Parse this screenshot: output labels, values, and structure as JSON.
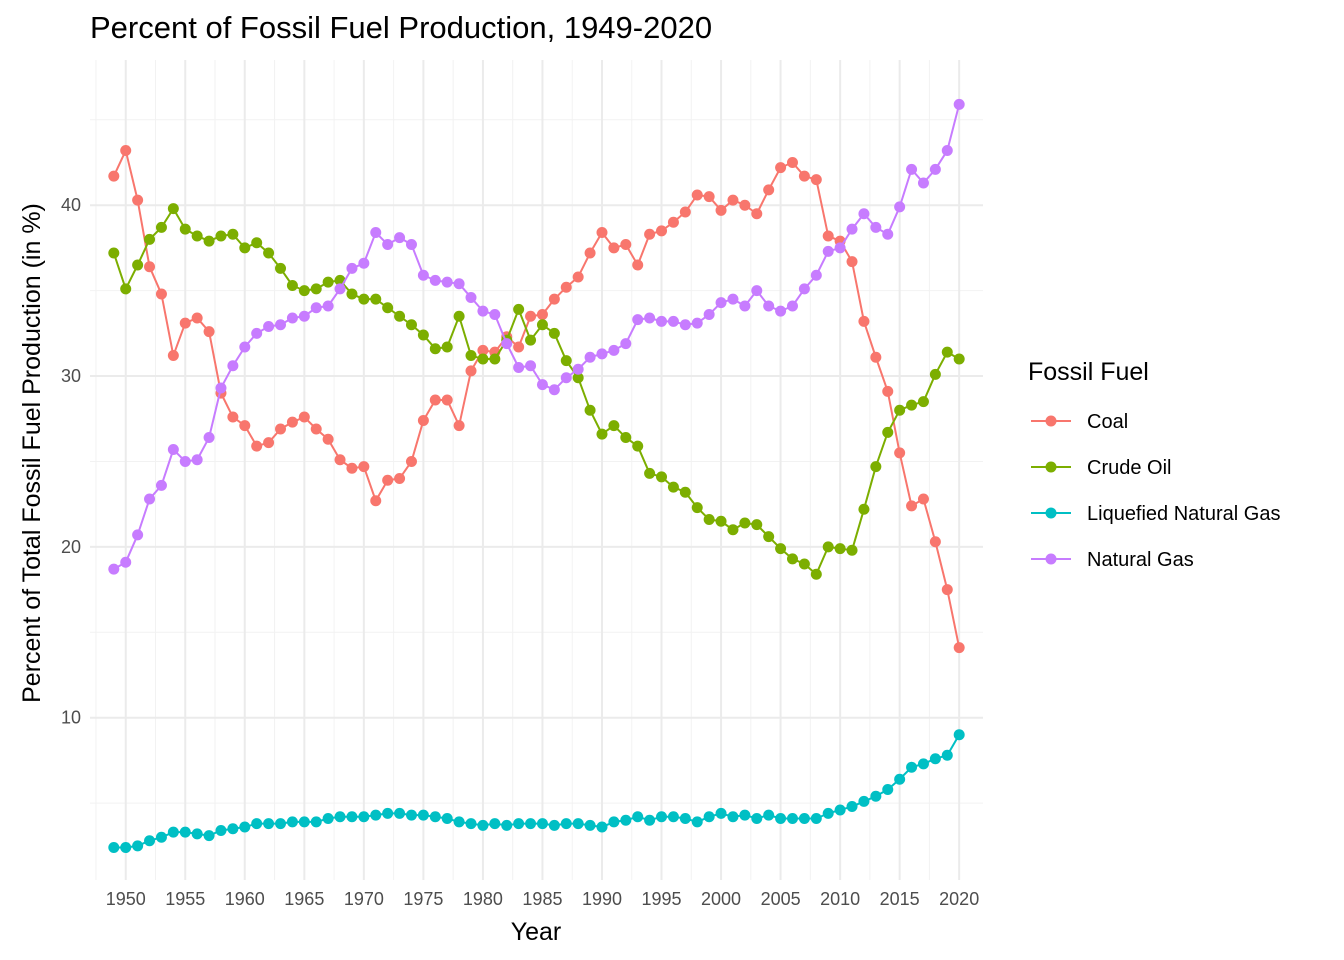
{
  "chart_data": {
    "type": "line",
    "title": "Percent of Fossil Fuel Production, 1949-2020",
    "xlabel": "Year",
    "ylabel": "Percent of Total Fossil Fuel Production (in %)",
    "xlim": [
      1947,
      2022
    ],
    "ylim": [
      0.5,
      48.5
    ],
    "x_ticks": [
      1950,
      1955,
      1960,
      1965,
      1970,
      1975,
      1980,
      1985,
      1990,
      1995,
      2000,
      2005,
      2010,
      2015,
      2020
    ],
    "y_ticks": [
      10,
      20,
      30,
      40
    ],
    "grid": true,
    "legend": {
      "title": "Fossil Fuel",
      "position": "right"
    },
    "x": [
      1949,
      1950,
      1951,
      1952,
      1953,
      1954,
      1955,
      1956,
      1957,
      1958,
      1959,
      1960,
      1961,
      1962,
      1963,
      1964,
      1965,
      1966,
      1967,
      1968,
      1969,
      1970,
      1971,
      1972,
      1973,
      1974,
      1975,
      1976,
      1977,
      1978,
      1979,
      1980,
      1981,
      1982,
      1983,
      1984,
      1985,
      1986,
      1987,
      1988,
      1989,
      1990,
      1991,
      1992,
      1993,
      1994,
      1995,
      1996,
      1997,
      1998,
      1999,
      2000,
      2001,
      2002,
      2003,
      2004,
      2005,
      2006,
      2007,
      2008,
      2009,
      2010,
      2011,
      2012,
      2013,
      2014,
      2015,
      2016,
      2017,
      2018,
      2019,
      2020
    ],
    "series": [
      {
        "name": "Coal",
        "color": "#F8766D",
        "values": [
          41.7,
          43.2,
          40.3,
          36.4,
          34.8,
          31.2,
          33.1,
          33.4,
          32.6,
          29.0,
          27.6,
          27.1,
          25.9,
          26.1,
          26.9,
          27.3,
          27.6,
          26.9,
          26.3,
          25.1,
          24.6,
          24.7,
          22.7,
          23.9,
          24.0,
          25.0,
          27.4,
          28.6,
          28.6,
          27.1,
          30.3,
          31.5,
          31.4,
          32.3,
          31.7,
          33.5,
          33.6,
          34.5,
          35.2,
          35.8,
          37.2,
          38.4,
          37.5,
          37.7,
          36.5,
          38.3,
          38.5,
          39.0,
          39.6,
          40.6,
          40.5,
          39.7,
          40.3,
          40.0,
          39.5,
          40.9,
          42.2,
          42.5,
          41.7,
          41.5,
          38.2,
          37.9,
          36.7,
          33.2,
          31.1,
          29.1,
          25.5,
          22.4,
          22.8,
          20.3,
          17.5,
          14.1
        ]
      },
      {
        "name": "Crude Oil",
        "color": "#7CAE00",
        "values": [
          37.2,
          35.1,
          36.5,
          38.0,
          38.7,
          39.8,
          38.6,
          38.2,
          37.9,
          38.2,
          38.3,
          37.5,
          37.8,
          37.2,
          36.3,
          35.3,
          35.0,
          35.1,
          35.5,
          35.6,
          34.8,
          34.5,
          34.5,
          34.0,
          33.5,
          33.0,
          32.4,
          31.6,
          31.7,
          33.5,
          31.2,
          31.0,
          31.0,
          32.1,
          33.9,
          32.1,
          33.0,
          32.5,
          30.9,
          29.9,
          28.0,
          26.6,
          27.1,
          26.4,
          25.9,
          24.3,
          24.1,
          23.5,
          23.2,
          22.3,
          21.6,
          21.5,
          21.0,
          21.4,
          21.3,
          20.6,
          19.9,
          19.3,
          19.0,
          18.4,
          20.0,
          19.9,
          19.8,
          22.2,
          24.7,
          26.7,
          28.0,
          28.3,
          28.5,
          30.1,
          31.4,
          31.0
        ]
      },
      {
        "name": "Liquefied Natural Gas",
        "color": "#00BFC4",
        "values": [
          2.4,
          2.4,
          2.5,
          2.8,
          3.0,
          3.3,
          3.3,
          3.2,
          3.1,
          3.4,
          3.5,
          3.6,
          3.8,
          3.8,
          3.8,
          3.9,
          3.9,
          3.9,
          4.1,
          4.2,
          4.2,
          4.2,
          4.3,
          4.4,
          4.4,
          4.3,
          4.3,
          4.2,
          4.1,
          3.9,
          3.8,
          3.7,
          3.8,
          3.7,
          3.8,
          3.8,
          3.8,
          3.7,
          3.8,
          3.8,
          3.7,
          3.6,
          3.9,
          4.0,
          4.2,
          4.0,
          4.2,
          4.2,
          4.1,
          3.9,
          4.2,
          4.4,
          4.2,
          4.3,
          4.1,
          4.3,
          4.1,
          4.1,
          4.1,
          4.1,
          4.4,
          4.6,
          4.8,
          5.1,
          5.4,
          5.8,
          6.4,
          7.1,
          7.3,
          7.6,
          7.8,
          9.0
        ]
      },
      {
        "name": "Natural Gas",
        "color": "#C77CFF",
        "values": [
          18.7,
          19.1,
          20.7,
          22.8,
          23.6,
          25.7,
          25.0,
          25.1,
          26.4,
          29.3,
          30.6,
          31.7,
          32.5,
          32.9,
          33.0,
          33.4,
          33.5,
          34.0,
          34.1,
          35.1,
          36.3,
          36.6,
          38.4,
          37.7,
          38.1,
          37.7,
          35.9,
          35.6,
          35.5,
          35.4,
          34.6,
          33.8,
          33.6,
          31.9,
          30.5,
          30.6,
          29.5,
          29.2,
          29.9,
          30.4,
          31.1,
          31.3,
          31.5,
          31.9,
          33.3,
          33.4,
          33.2,
          33.2,
          33.0,
          33.1,
          33.6,
          34.3,
          34.5,
          34.1,
          35.0,
          34.1,
          33.8,
          34.1,
          35.1,
          35.9,
          37.3,
          37.5,
          38.6,
          39.5,
          38.7,
          38.3,
          39.9,
          42.1,
          41.3,
          42.1,
          43.2,
          45.9
        ]
      }
    ]
  }
}
